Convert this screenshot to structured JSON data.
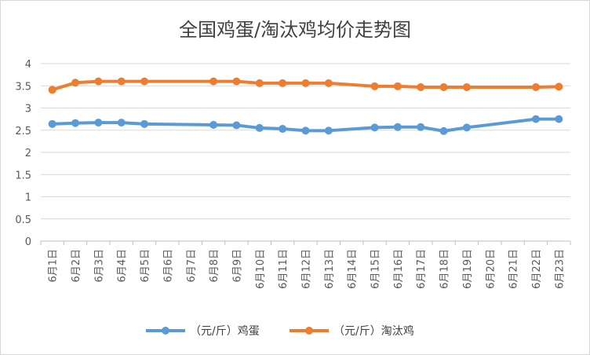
{
  "chart_data": {
    "type": "line",
    "title": "全国鸡蛋/淘汰鸡均价走势图",
    "categories": [
      "6月1日",
      "6月2日",
      "6月3日",
      "6月4日",
      "6月5日",
      "6月6日",
      "6月7日",
      "6月8日",
      "6月9日",
      "6月10日",
      "6月11日",
      "6月12日",
      "6月13日",
      "6月14日",
      "6月15日",
      "6月16日",
      "6月17日",
      "6月18日",
      "6月19日",
      "6月20日",
      "6月21日",
      "6月22日",
      "6月23日"
    ],
    "ylim": [
      0,
      4
    ],
    "yticks": [
      "0",
      "0.5",
      "1",
      "1.5",
      "2",
      "2.5",
      "3",
      "3.5",
      "4"
    ],
    "grid": true,
    "legend_position": "bottom",
    "series": [
      {
        "name": "（元/斤）鸡蛋",
        "color": "#5b9bd5",
        "values": [
          2.64,
          2.66,
          2.67,
          2.67,
          2.64,
          null,
          null,
          2.62,
          2.61,
          2.55,
          2.53,
          2.49,
          2.49,
          null,
          2.56,
          2.57,
          2.57,
          2.48,
          2.56,
          null,
          null,
          2.75,
          2.75
        ]
      },
      {
        "name": "（元/斤）淘汰鸡",
        "color": "#ed7d31",
        "values": [
          3.41,
          3.57,
          3.6,
          3.6,
          3.6,
          null,
          null,
          3.6,
          3.6,
          3.56,
          3.56,
          3.56,
          3.56,
          null,
          3.49,
          3.49,
          3.47,
          3.47,
          3.47,
          null,
          null,
          3.47,
          3.48
        ]
      }
    ]
  }
}
